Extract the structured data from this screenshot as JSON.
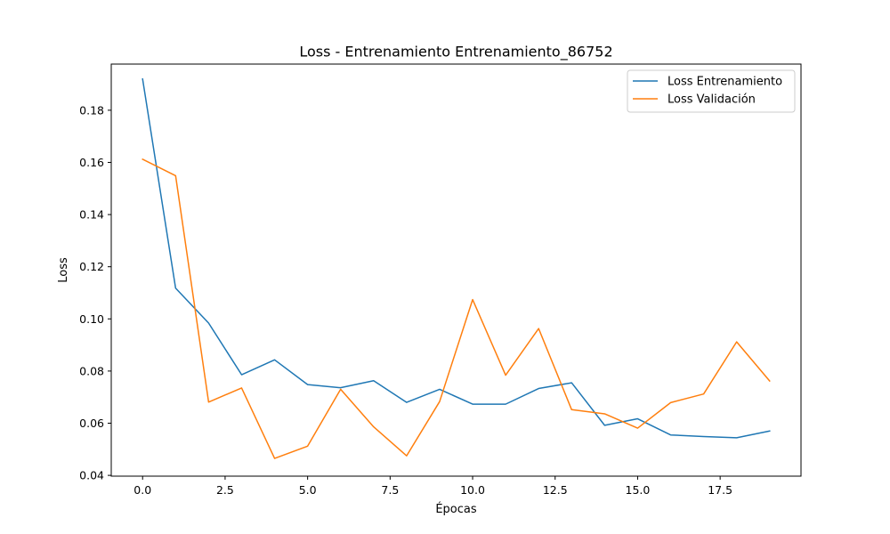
{
  "chart_data": {
    "type": "line",
    "title": "Loss - Entrenamiento Entrenamiento_86752",
    "xlabel": "Épocas",
    "ylabel": "Loss",
    "xlim": [
      -0.95,
      19.95
    ],
    "ylim": [
      0.0397,
      0.1977
    ],
    "xticks": [
      0.0,
      2.5,
      5.0,
      7.5,
      10.0,
      12.5,
      15.0,
      17.5
    ],
    "xtick_labels": [
      "0.0",
      "2.5",
      "5.0",
      "7.5",
      "10.0",
      "12.5",
      "15.0",
      "17.5"
    ],
    "yticks": [
      0.04,
      0.06,
      0.08,
      0.1,
      0.12,
      0.14,
      0.16,
      0.18
    ],
    "ytick_labels": [
      "0.04",
      "0.06",
      "0.08",
      "0.10",
      "0.12",
      "0.14",
      "0.16",
      "0.18"
    ],
    "grid": false,
    "legend_position": "top-right",
    "x": [
      0,
      1,
      2,
      3,
      4,
      5,
      6,
      7,
      8,
      9,
      10,
      11,
      12,
      13,
      14,
      15,
      16,
      17,
      18,
      19
    ],
    "series": [
      {
        "name": "Loss Entrenamiento",
        "color": "#1f77b4",
        "values": [
          0.192,
          0.1118,
          0.0984,
          0.0786,
          0.0843,
          0.0748,
          0.0736,
          0.0763,
          0.068,
          0.073,
          0.0673,
          0.0673,
          0.0733,
          0.0755,
          0.0592,
          0.0617,
          0.0555,
          0.0549,
          0.0544,
          0.057
        ]
      },
      {
        "name": "Loss Validación",
        "color": "#ff7f0e",
        "values": [
          0.1612,
          0.1549,
          0.0681,
          0.0735,
          0.0465,
          0.0512,
          0.073,
          0.0586,
          0.0475,
          0.0683,
          0.1074,
          0.0784,
          0.0963,
          0.0652,
          0.0636,
          0.0581,
          0.0679,
          0.0712,
          0.0912,
          0.0762
        ]
      }
    ]
  }
}
